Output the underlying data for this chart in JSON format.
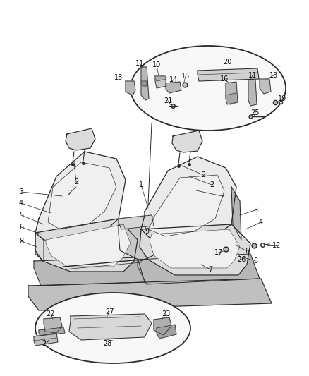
{
  "bg_color": "#ffffff",
  "line_color": "#2a2a2a",
  "seat_fill": "#dcdcdc",
  "seat_dark": "#b8b8b8",
  "seat_light": "#ebebeb",
  "figsize": [
    4.38,
    5.33
  ],
  "dpi": 100
}
